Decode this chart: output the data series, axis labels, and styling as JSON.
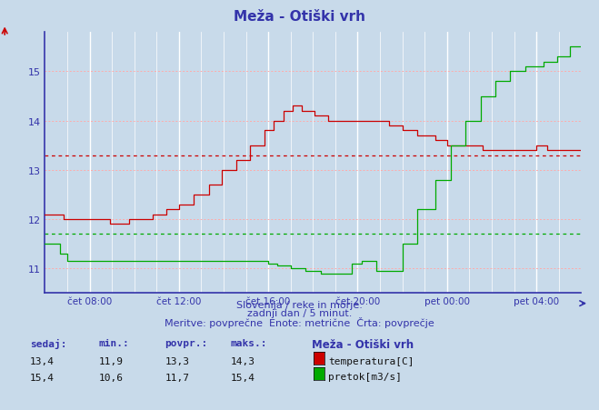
{
  "title": "Meža - Otiški vrh",
  "title_color": "#3333aa",
  "bg_color": "#c8daea",
  "plot_bg_color": "#c8daea",
  "temp_color": "#cc0000",
  "flow_color": "#00aa00",
  "avg_temp": 13.3,
  "avg_flow": 11.7,
  "ylim": [
    10.5,
    15.8
  ],
  "yticks": [
    11,
    12,
    13,
    14,
    15
  ],
  "x_tick_labels": [
    "čet 08:00",
    "čet 12:00",
    "čet 16:00",
    "čet 20:00",
    "pet 00:00",
    "pet 04:00"
  ],
  "subtitle1": "Slovenija / reke in morje.",
  "subtitle2": "zadnji dan / 5 minut.",
  "subtitle3": "Meritve: povprečne  Enote: metrične  Črta: povprečje",
  "legend_title": "Meža - Otiški vrh",
  "legend_temp": "temperatura[C]",
  "legend_flow": "pretok[m3/s]",
  "table_headers": [
    "sedaj:",
    "min.:",
    "povpr.:",
    "maks.:"
  ],
  "temp_row": [
    "13,4",
    "11,9",
    "13,3",
    "14,3"
  ],
  "flow_row": [
    "15,4",
    "10,6",
    "11,7",
    "15,4"
  ]
}
